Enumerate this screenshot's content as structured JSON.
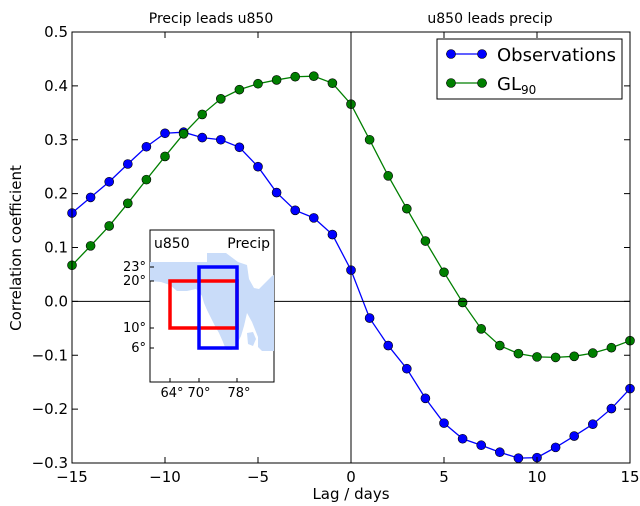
{
  "chart_data": {
    "type": "line",
    "xlabel": "Lag  /  days",
    "ylabel": "Correlation coefficient",
    "xlim": [
      -15,
      15
    ],
    "ylim": [
      -0.3,
      0.5
    ],
    "x_ticks": [
      -15,
      -10,
      -5,
      0,
      5,
      10,
      15
    ],
    "x_tick_labels": [
      "−15",
      "−10",
      "−5",
      "0",
      "5",
      "10",
      "15"
    ],
    "y_ticks": [
      -0.3,
      -0.2,
      -0.1,
      0.0,
      0.1,
      0.2,
      0.3,
      0.4,
      0.5
    ],
    "y_tick_labels": [
      "−0.3",
      "−0.2",
      "−0.1",
      "0.0",
      "0.1",
      "0.2",
      "0.3",
      "0.4",
      "0.5"
    ],
    "grid": false,
    "legend_position": "top-right",
    "annotations": {
      "left_top": "Precip leads u850",
      "right_top": "u850 leads precip"
    },
    "x": [
      -15,
      -14,
      -13,
      -12,
      -11,
      -10,
      -9,
      -8,
      -7,
      -6,
      -5,
      -4,
      -3,
      -2,
      -1,
      0,
      1,
      2,
      3,
      4,
      5,
      6,
      7,
      8,
      9,
      10,
      11,
      12,
      13,
      14,
      15
    ],
    "series": [
      {
        "name": "Observations",
        "color": "#0000ff",
        "values": [
          0.164,
          0.193,
          0.222,
          0.255,
          0.287,
          0.312,
          0.314,
          0.304,
          0.3,
          0.286,
          0.25,
          0.202,
          0.169,
          0.155,
          0.124,
          0.058,
          -0.031,
          -0.082,
          -0.125,
          -0.18,
          -0.226,
          -0.255,
          -0.267,
          -0.28,
          -0.291,
          -0.29,
          -0.271,
          -0.25,
          -0.228,
          -0.199,
          -0.162
        ]
      },
      {
        "name": "GL",
        "name_subscript": "90",
        "color": "#007f00",
        "values": [
          0.067,
          0.103,
          0.14,
          0.182,
          0.226,
          0.269,
          0.311,
          0.347,
          0.376,
          0.393,
          0.404,
          0.411,
          0.417,
          0.418,
          0.405,
          0.366,
          0.3,
          0.233,
          0.172,
          0.112,
          0.054,
          -0.002,
          -0.051,
          -0.082,
          -0.097,
          -0.103,
          -0.104,
          -0.102,
          -0.096,
          -0.086,
          -0.073
        ]
      }
    ],
    "inset_map": {
      "label_left": "u850",
      "label_left_color": "#ff0000",
      "label_right": "Precip",
      "label_right_color": "#0000ff",
      "land_color": "#c9dcf9",
      "y_tick_labels": [
        "23°",
        "20°",
        "10°",
        "6°"
      ],
      "x_tick_labels": [
        "64°",
        "70°",
        "78°"
      ]
    }
  }
}
